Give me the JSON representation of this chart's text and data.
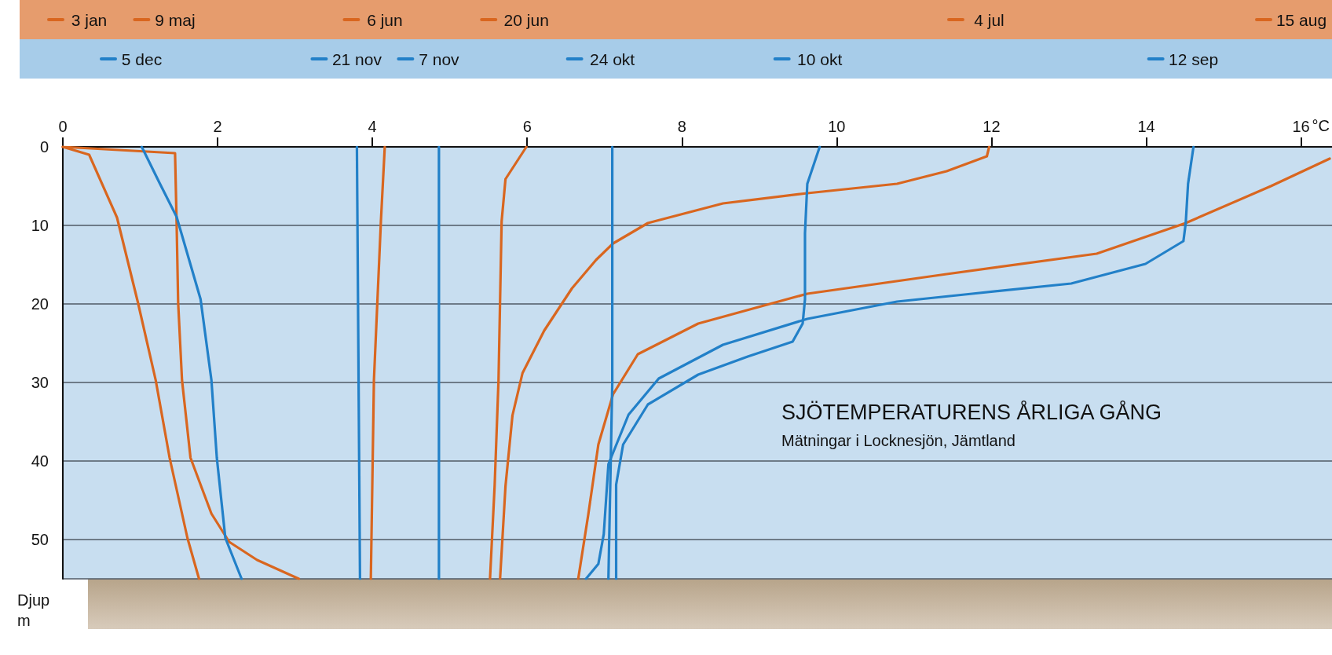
{
  "chart_data": {
    "type": "line",
    "title": "SJÖTEMPERATURENS ÅRLIGA GÅNG",
    "subtitle": "Mätningar i Locknesjön, Jämtland",
    "xlabel": "°C",
    "ylabel": "Djup m",
    "xlim": [
      0,
      16.4
    ],
    "xticks": [
      0,
      2,
      4,
      6,
      8,
      10,
      12,
      14,
      16
    ],
    "ylim": [
      55,
      0
    ],
    "yticks": [
      0,
      10,
      20,
      30,
      40,
      50
    ],
    "grid": "y",
    "legend": "top",
    "marker": "none",
    "line_style": "solid",
    "series": [
      {
        "name": "3 jan",
        "color": "#d9661f",
        "x": [
          0,
          0.34,
          0.7,
          0.97,
          1.2,
          1.38,
          1.61,
          1.76
        ],
        "values": [
          0,
          1,
          9,
          19.8,
          29.7,
          39.6,
          49.8,
          55
        ]
      },
      {
        "name": "9 maj",
        "color": "#d9661f",
        "x": [
          0,
          1.45,
          1.47,
          1.49,
          1.54,
          1.65,
          1.92,
          2.15,
          2.51,
          3.05
        ],
        "values": [
          0,
          0.8,
          9.5,
          19.8,
          29.7,
          39.6,
          46.7,
          50.3,
          52.6,
          55
        ]
      },
      {
        "name": "6 jun",
        "color": "#d9661f",
        "x": [
          4.16,
          4.11,
          4.02,
          3.98
        ],
        "values": [
          0,
          9.5,
          29.7,
          55
        ]
      },
      {
        "name": "20 jun",
        "color": "#d9661f",
        "x": [
          5.99,
          5.72,
          5.67,
          5.63,
          5.58,
          5.52
        ],
        "values": [
          0,
          4.1,
          9.5,
          29.7,
          43.1,
          55
        ]
      },
      {
        "name": "4 jul",
        "color": "#d9661f",
        "x": [
          11.97,
          11.94,
          11.42,
          10.78,
          9.62,
          8.53,
          7.56,
          7.11,
          6.89,
          6.58,
          6.22,
          5.94,
          5.81,
          5.72,
          5.65
        ],
        "values": [
          0,
          1.2,
          3.1,
          4.7,
          5.9,
          7.2,
          9.7,
          12.3,
          14.4,
          18,
          23.4,
          28.8,
          34.2,
          43.2,
          55
        ]
      },
      {
        "name": "15 aug",
        "color": "#d9661f",
        "x": [
          16.37,
          15.61,
          14.51,
          13.36,
          11.42,
          9.62,
          8.21,
          7.43,
          7.11,
          6.92,
          6.79,
          6.66
        ],
        "values": [
          1.5,
          5,
          9.7,
          13.6,
          16.2,
          18.7,
          22.5,
          26.4,
          31.5,
          37.9,
          46.8,
          55
        ]
      },
      {
        "name": "12 sep",
        "color": "#2280c8",
        "x": [
          14.61,
          14.54,
          14.51,
          14.48,
          13.99,
          13.03,
          11.75,
          10.78,
          9.62,
          8.53,
          7.7,
          7.31,
          7.05,
          6.99,
          6.92,
          6.76
        ],
        "values": [
          0,
          4.7,
          9.7,
          12,
          14.9,
          17.4,
          18.7,
          19.7,
          21.9,
          25.2,
          29.5,
          34.1,
          40.4,
          49.3,
          53.1,
          55
        ]
      },
      {
        "name": "10 okt",
        "color": "#2280c8",
        "x": [
          9.78,
          9.62,
          9.59,
          9.59,
          9.56,
          9.43,
          8.85,
          8.21,
          7.56,
          7.24,
          7.15,
          7.15
        ],
        "values": [
          0,
          4.7,
          11,
          19.4,
          22.5,
          24.8,
          26.7,
          29,
          32.8,
          37.9,
          43,
          55
        ]
      },
      {
        "name": "24 okt",
        "color": "#2280c8",
        "x": [
          7.1,
          7.1,
          7.05
        ],
        "values": [
          0,
          30,
          55
        ]
      },
      {
        "name": "7 nov",
        "color": "#2280c8",
        "x": [
          4.86,
          4.86
        ],
        "values": [
          0,
          55
        ]
      },
      {
        "name": "21 nov",
        "color": "#2280c8",
        "x": [
          3.8,
          3.84
        ],
        "values": [
          0,
          55
        ]
      },
      {
        "name": "5 dec",
        "color": "#2280c8",
        "x": [
          1.02,
          1.25,
          1.47,
          1.78,
          1.92,
          1.99,
          2.1,
          2.31
        ],
        "values": [
          0,
          4.6,
          8.9,
          19.4,
          29.7,
          39.6,
          49.8,
          55
        ]
      }
    ]
  }
}
